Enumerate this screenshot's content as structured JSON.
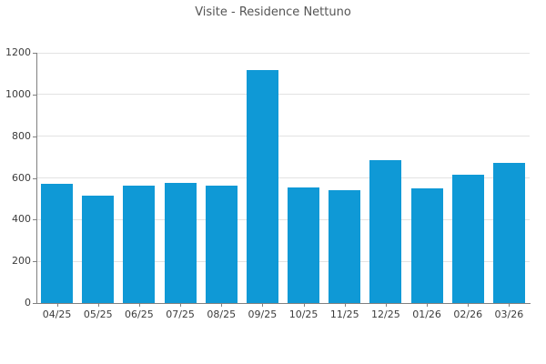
{
  "chart_data": {
    "type": "bar",
    "title": "Visite - Residence Nettuno",
    "categories": [
      "04/25",
      "05/25",
      "06/25",
      "07/25",
      "08/25",
      "09/25",
      "10/25",
      "11/25",
      "12/25",
      "01/26",
      "02/26",
      "03/26"
    ],
    "values": [
      570,
      515,
      565,
      575,
      565,
      1115,
      555,
      540,
      685,
      550,
      615,
      670
    ],
    "xlabel": "",
    "ylabel": "",
    "ylim": [
      0,
      1200
    ],
    "yticks": [
      0,
      200,
      400,
      600,
      800,
      1000,
      1200
    ],
    "grid": "horizontal",
    "legend": "none",
    "bar_color": "#0f99d6"
  }
}
